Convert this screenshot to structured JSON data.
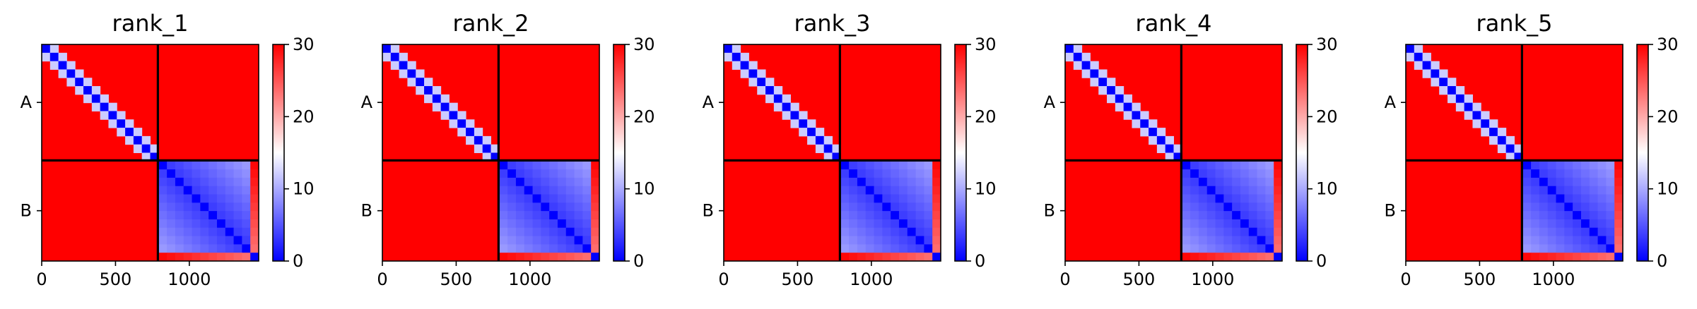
{
  "chart_data": [
    {
      "type": "heatmap",
      "title": "rank_1",
      "x_ticks": [
        "0",
        "500",
        "1000"
      ],
      "x_tick_values": [
        0,
        500,
        1000
      ],
      "y_tick_labels": [
        "A",
        "B"
      ],
      "chains": [
        {
          "name": "A",
          "start": 0,
          "end": 787
        },
        {
          "name": "B",
          "start": 787,
          "end": 1470
        }
      ],
      "xlim": [
        0,
        1470
      ],
      "colorbar": {
        "ticks": [
          "0",
          "10",
          "20",
          "30"
        ],
        "tick_values": [
          0,
          10,
          20,
          30
        ],
        "range": [
          0,
          30
        ],
        "colors": [
          "#0000ff",
          "#ffffff",
          "#ff0000"
        ]
      },
      "colormap": "bwr",
      "grid": false
    },
    {
      "type": "heatmap",
      "title": "rank_2",
      "x_ticks": [
        "0",
        "500",
        "1000"
      ],
      "x_tick_values": [
        0,
        500,
        1000
      ],
      "y_tick_labels": [
        "A",
        "B"
      ],
      "chains": [
        {
          "name": "A",
          "start": 0,
          "end": 787
        },
        {
          "name": "B",
          "start": 787,
          "end": 1470
        }
      ],
      "xlim": [
        0,
        1470
      ],
      "colorbar": {
        "ticks": [
          "0",
          "10",
          "20",
          "30"
        ],
        "tick_values": [
          0,
          10,
          20,
          30
        ],
        "range": [
          0,
          30
        ],
        "colors": [
          "#0000ff",
          "#ffffff",
          "#ff0000"
        ]
      },
      "colormap": "bwr",
      "grid": false
    },
    {
      "type": "heatmap",
      "title": "rank_3",
      "x_ticks": [
        "0",
        "500",
        "1000"
      ],
      "x_tick_values": [
        0,
        500,
        1000
      ],
      "y_tick_labels": [
        "A",
        "B"
      ],
      "chains": [
        {
          "name": "A",
          "start": 0,
          "end": 787
        },
        {
          "name": "B",
          "start": 787,
          "end": 1470
        }
      ],
      "xlim": [
        0,
        1470
      ],
      "colorbar": {
        "ticks": [
          "0",
          "10",
          "20",
          "30"
        ],
        "tick_values": [
          0,
          10,
          20,
          30
        ],
        "range": [
          0,
          30
        ],
        "colors": [
          "#0000ff",
          "#ffffff",
          "#ff0000"
        ]
      },
      "colormap": "bwr",
      "grid": false
    },
    {
      "type": "heatmap",
      "title": "rank_4",
      "x_ticks": [
        "0",
        "500",
        "1000"
      ],
      "x_tick_values": [
        0,
        500,
        1000
      ],
      "y_tick_labels": [
        "A",
        "B"
      ],
      "chains": [
        {
          "name": "A",
          "start": 0,
          "end": 787
        },
        {
          "name": "B",
          "start": 787,
          "end": 1470
        }
      ],
      "xlim": [
        0,
        1470
      ],
      "colorbar": {
        "ticks": [
          "0",
          "10",
          "20",
          "30"
        ],
        "tick_values": [
          0,
          10,
          20,
          30
        ],
        "range": [
          0,
          30
        ],
        "colors": [
          "#0000ff",
          "#ffffff",
          "#ff0000"
        ]
      },
      "colormap": "bwr",
      "grid": false
    },
    {
      "type": "heatmap",
      "title": "rank_5",
      "x_ticks": [
        "0",
        "500",
        "1000"
      ],
      "x_tick_values": [
        0,
        500,
        1000
      ],
      "y_tick_labels": [
        "A",
        "B"
      ],
      "chains": [
        {
          "name": "A",
          "start": 0,
          "end": 787
        },
        {
          "name": "B",
          "start": 787,
          "end": 1470
        }
      ],
      "xlim": [
        0,
        1470
      ],
      "colorbar": {
        "ticks": [
          "0",
          "10",
          "20",
          "30"
        ],
        "tick_values": [
          0,
          10,
          20,
          30
        ],
        "range": [
          0,
          30
        ],
        "colors": [
          "#0000ff",
          "#ffffff",
          "#ff0000"
        ]
      },
      "colormap": "bwr",
      "grid": false
    }
  ]
}
